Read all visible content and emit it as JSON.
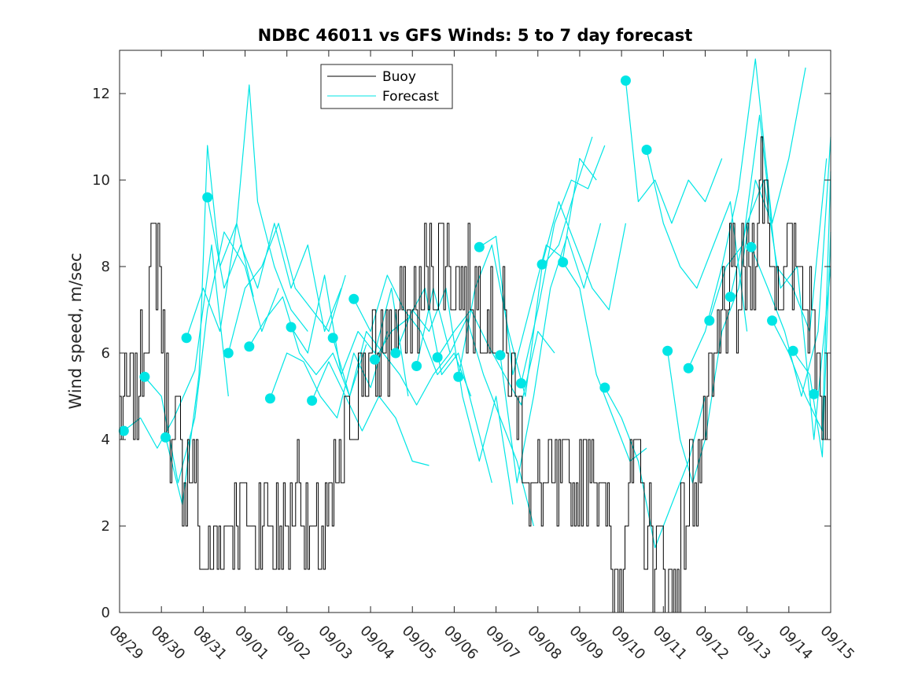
{
  "chart_data": {
    "type": "line",
    "title": "NDBC 46011 vs GFS Winds: 5 to 7 day forecast",
    "xlabel": "",
    "ylabel": "Wind speed, m/sec",
    "x_ticks": [
      "08/29",
      "08/30",
      "08/31",
      "09/01",
      "09/02",
      "09/03",
      "09/04",
      "09/05",
      "09/06",
      "09/07",
      "09/08",
      "09/09",
      "09/10",
      "09/11",
      "09/12",
      "09/13",
      "09/14",
      "09/15"
    ],
    "xlim_days": [
      0,
      17
    ],
    "ylim": [
      0,
      13
    ],
    "y_ticks": [
      0,
      2,
      4,
      6,
      8,
      10,
      12
    ],
    "legend": {
      "location": "top-center",
      "entries": [
        {
          "name": "Buoy",
          "color": "#000000"
        },
        {
          "name": "Forecast",
          "color": "#00e5e5"
        }
      ]
    },
    "colors": {
      "buoy": "#000000",
      "forecast": "#00e5e5"
    },
    "buoy_anchors": [
      [
        0.0,
        4.5
      ],
      [
        0.4,
        4.8
      ],
      [
        0.7,
        7.5
      ],
      [
        0.9,
        8.5
      ],
      [
        1.05,
        6.0
      ],
      [
        1.2,
        4.0
      ],
      [
        1.5,
        3.5
      ],
      [
        1.8,
        3.0
      ],
      [
        2.0,
        1.0
      ],
      [
        2.4,
        1.5
      ],
      [
        2.8,
        2.5
      ],
      [
        3.2,
        2.0
      ],
      [
        3.5,
        2.5
      ],
      [
        3.8,
        1.5
      ],
      [
        4.0,
        2.0
      ],
      [
        4.3,
        3.0
      ],
      [
        4.6,
        1.2
      ],
      [
        5.0,
        2.0
      ],
      [
        5.2,
        3.0
      ],
      [
        5.5,
        4.5
      ],
      [
        5.8,
        5.5
      ],
      [
        6.2,
        6.0
      ],
      [
        6.6,
        6.5
      ],
      [
        7.0,
        7.0
      ],
      [
        7.4,
        8.0
      ],
      [
        7.8,
        8.5
      ],
      [
        8.2,
        7.5
      ],
      [
        8.6,
        7.5
      ],
      [
        8.9,
        7.0
      ],
      [
        9.3,
        6.0
      ],
      [
        9.6,
        4.0
      ],
      [
        9.9,
        2.5
      ],
      [
        10.2,
        3.0
      ],
      [
        10.5,
        2.5
      ],
      [
        10.9,
        3.0
      ],
      [
        11.3,
        4.0
      ],
      [
        11.6,
        2.0
      ],
      [
        11.9,
        0.8
      ],
      [
        12.3,
        3.5
      ],
      [
        12.6,
        2.0
      ],
      [
        12.9,
        1.0
      ],
      [
        13.2,
        0.5
      ],
      [
        13.5,
        2.5
      ],
      [
        13.8,
        3.5
      ],
      [
        14.2,
        5.0
      ],
      [
        14.5,
        7.5
      ],
      [
        14.8,
        7.0
      ],
      [
        15.1,
        8.0
      ],
      [
        15.4,
        10.5
      ],
      [
        15.6,
        8.0
      ],
      [
        15.9,
        7.5
      ],
      [
        16.2,
        8.5
      ],
      [
        16.5,
        7.0
      ],
      [
        16.8,
        5.0
      ],
      [
        17.0,
        5.5
      ]
    ],
    "forecast_dots": [
      {
        "x": 0.1,
        "y": 4.2
      },
      {
        "x": 0.6,
        "y": 5.45
      },
      {
        "x": 1.1,
        "y": 4.05
      },
      {
        "x": 1.6,
        "y": 6.35
      },
      {
        "x": 2.1,
        "y": 9.6
      },
      {
        "x": 2.6,
        "y": 6.0
      },
      {
        "x": 3.1,
        "y": 6.15
      },
      {
        "x": 3.6,
        "y": 4.95
      },
      {
        "x": 4.1,
        "y": 6.6
      },
      {
        "x": 4.6,
        "y": 4.9
      },
      {
        "x": 5.1,
        "y": 6.35
      },
      {
        "x": 5.6,
        "y": 7.25
      },
      {
        "x": 6.1,
        "y": 5.85
      },
      {
        "x": 6.6,
        "y": 6.0
      },
      {
        "x": 7.1,
        "y": 5.7
      },
      {
        "x": 7.6,
        "y": 5.9
      },
      {
        "x": 8.1,
        "y": 5.45
      },
      {
        "x": 8.6,
        "y": 8.45
      },
      {
        "x": 9.1,
        "y": 5.95
      },
      {
        "x": 9.6,
        "y": 5.3
      },
      {
        "x": 10.1,
        "y": 8.05
      },
      {
        "x": 10.6,
        "y": 8.1
      },
      {
        "x": 11.6,
        "y": 5.2
      },
      {
        "x": 12.1,
        "y": 12.3
      },
      {
        "x": 12.6,
        "y": 10.7
      },
      {
        "x": 13.1,
        "y": 6.05
      },
      {
        "x": 13.6,
        "y": 5.65
      },
      {
        "x": 14.1,
        "y": 6.75
      },
      {
        "x": 14.6,
        "y": 7.3
      },
      {
        "x": 15.1,
        "y": 8.45
      },
      {
        "x": 15.6,
        "y": 6.75
      },
      {
        "x": 16.1,
        "y": 6.05
      },
      {
        "x": 16.6,
        "y": 5.05
      }
    ],
    "forecast_segments": [
      [
        [
          0.1,
          4.2
        ],
        [
          0.5,
          4.5
        ],
        [
          0.9,
          3.8
        ],
        [
          1.3,
          4.5
        ],
        [
          1.8,
          5.6
        ],
        [
          2.2,
          8.5
        ],
        [
          2.6,
          5.0
        ]
      ],
      [
        [
          0.6,
          5.45
        ],
        [
          1.0,
          5.0
        ],
        [
          1.4,
          3.0
        ],
        [
          1.8,
          4.5
        ],
        [
          2.1,
          7.0
        ],
        [
          2.5,
          8.8
        ],
        [
          3.0,
          8.0
        ],
        [
          3.4,
          6.5
        ],
        [
          3.8,
          7.5
        ]
      ],
      [
        [
          1.1,
          4.05
        ],
        [
          1.5,
          2.5
        ],
        [
          1.9,
          5.5
        ],
        [
          2.1,
          10.8
        ],
        [
          2.4,
          8.0
        ],
        [
          2.8,
          9.0
        ],
        [
          3.2,
          7.3
        ]
      ],
      [
        [
          1.6,
          6.35
        ],
        [
          2.0,
          7.5
        ],
        [
          2.4,
          6.5
        ],
        [
          2.8,
          9.0
        ],
        [
          3.1,
          12.2
        ],
        [
          3.3,
          9.5
        ],
        [
          3.7,
          8.0
        ],
        [
          4.1,
          7.0
        ],
        [
          4.5,
          6.5
        ]
      ],
      [
        [
          2.1,
          9.6
        ],
        [
          2.5,
          7.5
        ],
        [
          2.9,
          8.5
        ],
        [
          3.3,
          7.5
        ],
        [
          3.7,
          9.0
        ],
        [
          4.1,
          7.5
        ],
        [
          4.5,
          8.5
        ],
        [
          4.9,
          6.5
        ],
        [
          5.3,
          7.5
        ]
      ],
      [
        [
          2.6,
          6.0
        ],
        [
          3.0,
          7.5
        ],
        [
          3.4,
          8.0
        ],
        [
          3.8,
          9.0
        ],
        [
          4.2,
          7.5
        ],
        [
          4.6,
          7.0
        ],
        [
          5.0,
          6.5
        ],
        [
          5.4,
          7.8
        ]
      ],
      [
        [
          3.1,
          6.15
        ],
        [
          3.5,
          6.8
        ],
        [
          3.9,
          7.3
        ],
        [
          4.3,
          6.0
        ],
        [
          4.7,
          5.5
        ],
        [
          5.1,
          6.0
        ],
        [
          5.5,
          5.0
        ],
        [
          5.9,
          6.2
        ]
      ],
      [
        [
          3.6,
          4.95
        ],
        [
          4.0,
          6.0
        ],
        [
          4.4,
          5.8
        ],
        [
          4.8,
          5.0
        ],
        [
          5.2,
          4.5
        ],
        [
          5.6,
          6.0
        ],
        [
          6.0,
          5.2
        ],
        [
          6.4,
          6.5
        ]
      ],
      [
        [
          4.1,
          6.6
        ],
        [
          4.5,
          6.0
        ],
        [
          4.9,
          7.8
        ],
        [
          5.3,
          5.5
        ],
        [
          5.7,
          6.5
        ],
        [
          6.1,
          6.0
        ],
        [
          6.5,
          7.5
        ],
        [
          6.9,
          5.0
        ]
      ],
      [
        [
          4.6,
          4.9
        ],
        [
          5.0,
          5.8
        ],
        [
          5.4,
          5.0
        ],
        [
          5.8,
          4.2
        ],
        [
          6.2,
          5.0
        ],
        [
          6.6,
          4.5
        ],
        [
          7.0,
          3.5
        ],
        [
          7.4,
          3.4
        ]
      ],
      [
        [
          5.1,
          6.35
        ],
        [
          5.5,
          5.0
        ],
        [
          5.9,
          6.5
        ],
        [
          6.3,
          6.0
        ],
        [
          6.7,
          5.5
        ],
        [
          7.1,
          4.8
        ],
        [
          7.5,
          5.5
        ],
        [
          7.9,
          6.0
        ]
      ],
      [
        [
          5.6,
          7.25
        ],
        [
          6.0,
          6.5
        ],
        [
          6.4,
          7.8
        ],
        [
          6.8,
          7.0
        ],
        [
          7.2,
          6.5
        ],
        [
          7.6,
          5.5
        ],
        [
          8.0,
          6.0
        ],
        [
          8.4,
          5.0
        ]
      ],
      [
        [
          6.1,
          5.85
        ],
        [
          6.5,
          6.5
        ],
        [
          6.9,
          6.8
        ],
        [
          7.3,
          7.5
        ],
        [
          7.7,
          5.5
        ],
        [
          8.1,
          6.0
        ],
        [
          8.5,
          4.5
        ],
        [
          8.9,
          3.0
        ]
      ],
      [
        [
          6.6,
          6.0
        ],
        [
          7.0,
          7.0
        ],
        [
          7.4,
          6.5
        ],
        [
          7.8,
          7.5
        ],
        [
          8.2,
          5.0
        ],
        [
          8.6,
          3.5
        ],
        [
          9.0,
          5.0
        ],
        [
          9.4,
          2.5
        ]
      ],
      [
        [
          7.1,
          5.7
        ],
        [
          7.5,
          7.5
        ],
        [
          7.9,
          6.0
        ],
        [
          8.3,
          6.8
        ],
        [
          8.7,
          5.5
        ],
        [
          9.1,
          4.5
        ],
        [
          9.5,
          3.5
        ],
        [
          9.9,
          2.0
        ]
      ],
      [
        [
          7.6,
          5.9
        ],
        [
          8.0,
          6.5
        ],
        [
          8.4,
          7.0
        ],
        [
          8.8,
          6.2
        ],
        [
          9.2,
          5.5
        ],
        [
          9.6,
          4.8
        ],
        [
          10.0,
          6.5
        ],
        [
          10.4,
          6.0
        ]
      ],
      [
        [
          8.1,
          5.45
        ],
        [
          8.5,
          7.5
        ],
        [
          8.9,
          8.5
        ],
        [
          9.3,
          6.5
        ],
        [
          9.7,
          5.0
        ],
        [
          10.1,
          8.0
        ],
        [
          10.5,
          8.5
        ],
        [
          10.9,
          9.8
        ],
        [
          11.3,
          11.0
        ]
      ],
      [
        [
          8.6,
          8.45
        ],
        [
          9.0,
          8.7
        ],
        [
          9.4,
          5.5
        ],
        [
          9.8,
          7.0
        ],
        [
          10.2,
          8.5
        ],
        [
          10.6,
          8.2
        ],
        [
          11.0,
          10.5
        ],
        [
          11.4,
          10.0
        ]
      ],
      [
        [
          9.1,
          5.95
        ],
        [
          9.5,
          3.0
        ],
        [
          9.9,
          5.0
        ],
        [
          10.3,
          7.5
        ],
        [
          10.7,
          8.7
        ],
        [
          11.1,
          7.5
        ],
        [
          11.5,
          9.0
        ]
      ],
      [
        [
          9.6,
          5.3
        ],
        [
          10.0,
          7.0
        ],
        [
          10.4,
          9.0
        ],
        [
          10.8,
          10.0
        ],
        [
          11.2,
          9.8
        ],
        [
          11.6,
          10.8
        ]
      ],
      [
        [
          10.1,
          8.05
        ],
        [
          10.5,
          9.5
        ],
        [
          10.9,
          8.5
        ],
        [
          11.3,
          7.5
        ],
        [
          11.7,
          7.0
        ],
        [
          12.1,
          9.0
        ]
      ],
      [
        [
          10.6,
          8.1
        ],
        [
          11.0,
          7.5
        ],
        [
          11.4,
          5.5
        ],
        [
          11.8,
          4.5
        ],
        [
          12.2,
          3.5
        ],
        [
          12.6,
          3.8
        ]
      ],
      [
        [
          11.6,
          5.2
        ],
        [
          12.0,
          4.5
        ],
        [
          12.4,
          3.5
        ],
        [
          12.8,
          1.5
        ],
        [
          13.2,
          2.5
        ],
        [
          13.6,
          3.5
        ],
        [
          14.0,
          5.0
        ]
      ],
      [
        [
          12.1,
          12.3
        ],
        [
          12.4,
          9.5
        ],
        [
          12.8,
          10.0
        ],
        [
          13.2,
          9.0
        ],
        [
          13.6,
          10.0
        ],
        [
          14.0,
          9.5
        ],
        [
          14.4,
          10.5
        ]
      ],
      [
        [
          12.6,
          10.7
        ],
        [
          13.0,
          9.0
        ],
        [
          13.4,
          8.0
        ],
        [
          13.8,
          7.5
        ],
        [
          14.2,
          8.5
        ],
        [
          14.6,
          9.5
        ],
        [
          15.0,
          6.5
        ]
      ],
      [
        [
          13.1,
          6.05
        ],
        [
          13.4,
          4.0
        ],
        [
          13.7,
          3.0
        ],
        [
          14.0,
          4.0
        ],
        [
          14.4,
          6.5
        ],
        [
          14.8,
          7.5
        ],
        [
          15.2,
          10.0
        ],
        [
          15.6,
          9.0
        ]
      ],
      [
        [
          13.6,
          5.65
        ],
        [
          14.0,
          6.5
        ],
        [
          14.4,
          8.0
        ],
        [
          14.8,
          9.8
        ],
        [
          15.2,
          12.8
        ],
        [
          15.6,
          9.0
        ],
        [
          16.0,
          10.5
        ],
        [
          16.4,
          12.6
        ]
      ],
      [
        [
          14.1,
          6.75
        ],
        [
          14.5,
          8.0
        ],
        [
          14.9,
          8.5
        ],
        [
          15.3,
          11.5
        ],
        [
          15.7,
          8.0
        ],
        [
          16.1,
          7.5
        ],
        [
          16.5,
          6.5
        ],
        [
          16.9,
          10.5
        ]
      ],
      [
        [
          14.6,
          7.3
        ],
        [
          15.0,
          9.0
        ],
        [
          15.4,
          10.0
        ],
        [
          15.8,
          7.5
        ],
        [
          16.2,
          8.0
        ],
        [
          16.6,
          4.0
        ],
        [
          17.0,
          8.0
        ]
      ],
      [
        [
          15.1,
          8.45
        ],
        [
          15.5,
          7.5
        ],
        [
          15.9,
          6.5
        ],
        [
          16.3,
          5.0
        ],
        [
          16.7,
          6.5
        ],
        [
          17.0,
          11.0
        ]
      ],
      [
        [
          15.6,
          6.75
        ],
        [
          16.0,
          6.0
        ],
        [
          16.4,
          5.0
        ],
        [
          16.8,
          4.2
        ],
        [
          17.0,
          10.2
        ]
      ],
      [
        [
          16.1,
          6.05
        ],
        [
          16.5,
          5.5
        ],
        [
          16.8,
          3.6
        ],
        [
          17.0,
          8.8
        ]
      ]
    ]
  }
}
